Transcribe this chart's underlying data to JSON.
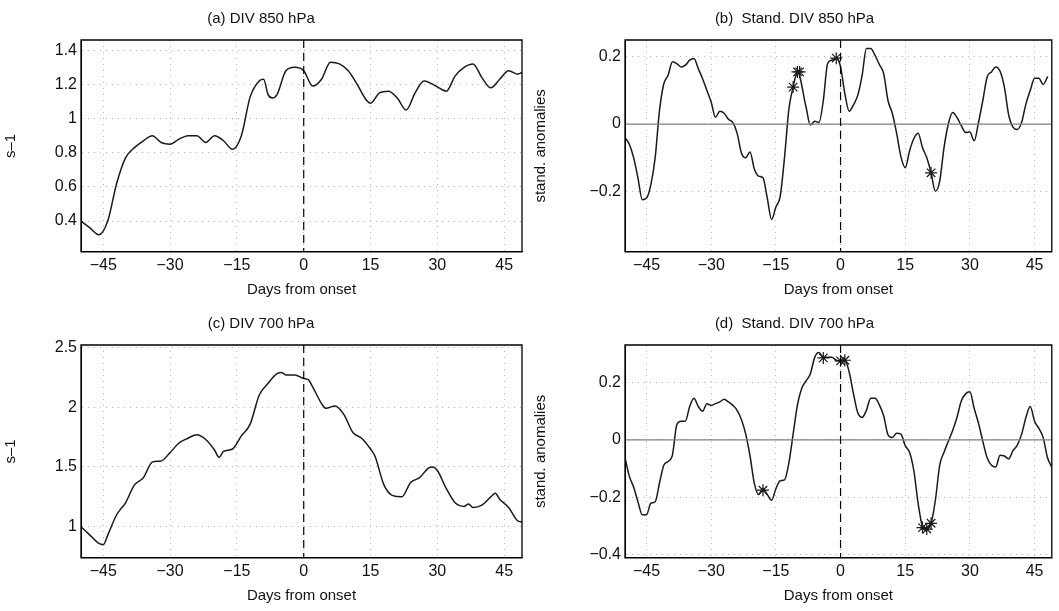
{
  "chart_data": [
    {
      "type": "line",
      "title": "(a) DIV 850 hPa",
      "xlabel": "Days from onset",
      "ylabel": "s–1",
      "xlim": [
        -50,
        49
      ],
      "ylim": [
        0.22,
        1.46
      ],
      "xticks": [
        -45,
        -30,
        -15,
        0,
        15,
        30,
        45
      ],
      "yticks": [
        0.4,
        0.6,
        0.8,
        1,
        1.2,
        1.4
      ],
      "grid": true,
      "legend": false,
      "marker": "none",
      "line_style": "solid",
      "ref_lines": [
        {
          "axis": "x",
          "value": 0,
          "color": "#000000",
          "line_style": "dashed"
        }
      ],
      "series": [
        {
          "color": "#1a1a1a",
          "x": [
            -50,
            -48,
            -46,
            -44,
            -42,
            -40,
            -38,
            -36,
            -34,
            -32,
            -30,
            -28,
            -26,
            -24,
            -22,
            -20,
            -18,
            -16,
            -14,
            -12,
            -10,
            -9,
            -8,
            -7,
            -6,
            -4,
            -2,
            0,
            2,
            4,
            6,
            8,
            10,
            12,
            14,
            15,
            17,
            19,
            21,
            23,
            25,
            27,
            29,
            31,
            32,
            34,
            36,
            38,
            40,
            42,
            44,
            46,
            48,
            49
          ],
          "values": [
            0.4,
            0.36,
            0.32,
            0.4,
            0.62,
            0.77,
            0.83,
            0.87,
            0.9,
            0.86,
            0.85,
            0.88,
            0.9,
            0.9,
            0.86,
            0.9,
            0.87,
            0.82,
            0.9,
            1.13,
            1.22,
            1.23,
            1.14,
            1.12,
            1.14,
            1.28,
            1.3,
            1.28,
            1.19,
            1.23,
            1.33,
            1.32,
            1.28,
            1.2,
            1.11,
            1.09,
            1.15,
            1.16,
            1.12,
            1.05,
            1.15,
            1.22,
            1.2,
            1.17,
            1.16,
            1.25,
            1.3,
            1.32,
            1.24,
            1.18,
            1.23,
            1.28,
            1.26,
            1.27
          ]
        }
      ]
    },
    {
      "type": "line",
      "title": "(b)  Stand. DIV 850 hPa",
      "xlabel": "Days from onset",
      "ylabel": "stand. anomalies",
      "xlim": [
        -50,
        49
      ],
      "ylim": [
        -0.38,
        0.25
      ],
      "xticks": [
        -45,
        -30,
        -15,
        0,
        15,
        30,
        45
      ],
      "yticks": [
        -0.2,
        0,
        0.2
      ],
      "grid": true,
      "legend": false,
      "marker": "none",
      "line_style": "solid",
      "ref_lines": [
        {
          "axis": "y",
          "value": 0,
          "color": "#808080",
          "line_style": "solid"
        },
        {
          "axis": "x",
          "value": 0,
          "color": "#000000",
          "line_style": "dashed"
        }
      ],
      "series": [
        {
          "color": "#1a1a1a",
          "x": [
            -50,
            -49,
            -48,
            -47,
            -46,
            -45,
            -44,
            -43,
            -42,
            -41,
            -40,
            -39,
            -38,
            -37,
            -36,
            -35,
            -34,
            -33,
            -32,
            -31,
            -30,
            -29,
            -28,
            -27,
            -26,
            -25,
            -24,
            -23,
            -22,
            -21,
            -20,
            -19,
            -18,
            -17,
            -16,
            -15,
            -14,
            -13,
            -12,
            -11,
            -10,
            -8,
            -7,
            -6,
            -5,
            -4,
            -3,
            -2,
            -1,
            0,
            1,
            2,
            3,
            4,
            5,
            6,
            7,
            8,
            9,
            10,
            11,
            12,
            13,
            14,
            15,
            16,
            17,
            18,
            19,
            20,
            21,
            22,
            23,
            24,
            25,
            26,
            27,
            28,
            29,
            30,
            31,
            32,
            33,
            34,
            35,
            36,
            37,
            38,
            39,
            40,
            41,
            42,
            43,
            44,
            45,
            46,
            47,
            48
          ],
          "values": [
            -0.04,
            -0.06,
            -0.1,
            -0.16,
            -0.225,
            -0.22,
            -0.18,
            -0.1,
            0.04,
            0.12,
            0.145,
            0.185,
            0.18,
            0.17,
            0.175,
            0.19,
            0.195,
            0.165,
            0.135,
            0.1,
            0.065,
            0.02,
            0.038,
            0.032,
            0.014,
            0.005,
            -0.027,
            -0.086,
            -0.1,
            -0.083,
            -0.134,
            -0.155,
            -0.16,
            -0.22,
            -0.284,
            -0.247,
            -0.215,
            -0.1,
            0.043,
            0.11,
            0.155,
            0.05,
            -0.003,
            0.008,
            0.005,
            0.07,
            0.18,
            0.19,
            0.196,
            0.17,
            0.09,
            0.038,
            0.057,
            0.086,
            0.145,
            0.225,
            0.225,
            0.204,
            0.177,
            0.15,
            0.07,
            0.032,
            -0.027,
            -0.097,
            -0.13,
            -0.08,
            -0.043,
            -0.027,
            -0.07,
            -0.1,
            -0.145,
            -0.2,
            -0.17,
            -0.07,
            0,
            0.034,
            0.02,
            -0.005,
            -0.025,
            -0.024,
            -0.05,
            0.005,
            0.07,
            0.14,
            0.155,
            0.17,
            0.157,
            0.11,
            0.027,
            -0.009,
            -0.016,
            0.005,
            0.06,
            0.1,
            0.136,
            0.136,
            0.118,
            0.14
          ]
        },
        {
          "type": "scatter",
          "color": "#1a1a1a",
          "marker": "cross",
          "x": [
            -11,
            -10,
            -9.5,
            -1,
            21
          ],
          "values": [
            0.11,
            0.155,
            0.155,
            0.196,
            -0.145
          ]
        }
      ]
    },
    {
      "type": "line",
      "title": "(c) DIV 700 hPa",
      "xlabel": "Days from onset",
      "ylabel": "s–1",
      "xlim": [
        -50,
        49
      ],
      "ylim": [
        0.74,
        2.52
      ],
      "xticks": [
        -45,
        -30,
        -15,
        0,
        15,
        30,
        45
      ],
      "yticks": [
        1,
        1.5,
        2,
        2.5
      ],
      "grid": true,
      "legend": false,
      "marker": "none",
      "line_style": "solid",
      "ref_lines": [
        {
          "axis": "x",
          "value": 0,
          "color": "#000000",
          "line_style": "dashed"
        }
      ],
      "series": [
        {
          "color": "#1a1a1a",
          "x": [
            -50,
            -48,
            -46,
            -45,
            -44,
            -42,
            -40,
            -38,
            -36,
            -34,
            -32,
            -30,
            -28,
            -26,
            -24,
            -22,
            -20,
            -19,
            -18,
            -16,
            -14,
            -12,
            -10,
            -8,
            -6,
            -5,
            -4,
            -2,
            0,
            1,
            2,
            4,
            5,
            7,
            9,
            11,
            13,
            15,
            16,
            18,
            20,
            22,
            24,
            26,
            28,
            29,
            30,
            32,
            34,
            36,
            37,
            38,
            40,
            42,
            43,
            44,
            46,
            48,
            49
          ],
          "values": [
            1,
            0.93,
            0.86,
            0.85,
            0.93,
            1.1,
            1.2,
            1.35,
            1.41,
            1.54,
            1.55,
            1.62,
            1.7,
            1.74,
            1.77,
            1.73,
            1.64,
            1.58,
            1.63,
            1.65,
            1.76,
            1.86,
            2.1,
            2.2,
            2.28,
            2.29,
            2.27,
            2.27,
            2.24,
            2.23,
            2.17,
            2.03,
            1.99,
            2.01,
            1.94,
            1.79,
            1.74,
            1.65,
            1.59,
            1.35,
            1.26,
            1.25,
            1.37,
            1.41,
            1.49,
            1.5,
            1.47,
            1.32,
            1.2,
            1.17,
            1.19,
            1.16,
            1.18,
            1.25,
            1.28,
            1.23,
            1.16,
            1.05,
            1.04
          ]
        }
      ]
    },
    {
      "type": "line",
      "title": "(d)  Stand. DIV 700 hPa",
      "xlabel": "Days from onset",
      "ylabel": "stand. anomalies",
      "xlim": [
        -50,
        49
      ],
      "ylim": [
        -0.41,
        0.33
      ],
      "xticks": [
        -45,
        -30,
        -15,
        0,
        15,
        30,
        45
      ],
      "yticks": [
        -0.4,
        -0.2,
        0,
        0.2
      ],
      "grid": true,
      "legend": false,
      "marker": "none",
      "line_style": "solid",
      "ref_lines": [
        {
          "axis": "y",
          "value": 0,
          "color": "#808080",
          "line_style": "solid"
        },
        {
          "axis": "x",
          "value": 0,
          "color": "#000000",
          "line_style": "dashed"
        }
      ],
      "series": [
        {
          "color": "#1a1a1a",
          "x": [
            -50,
            -49,
            -48,
            -47,
            -46,
            -45,
            -44,
            -43,
            -42,
            -41,
            -40,
            -39,
            -38,
            -37,
            -36,
            -35,
            -34,
            -33,
            -32,
            -31,
            -30,
            -29,
            -28,
            -27,
            -26,
            -25,
            -24,
            -23,
            -22,
            -21,
            -20,
            -19,
            -18,
            -17,
            -16,
            -15,
            -14,
            -13,
            -12,
            -11,
            -10,
            -9,
            -8,
            -7,
            -6,
            -5,
            -4,
            -3,
            -2,
            -1,
            0,
            1,
            2,
            3,
            4,
            5,
            6,
            7,
            8,
            9,
            10,
            11,
            12,
            13,
            14,
            15,
            16,
            17,
            18,
            19,
            20,
            21,
            22,
            23,
            24,
            25,
            26,
            27,
            28,
            29,
            30,
            31,
            32,
            33,
            34,
            35,
            36,
            37,
            38,
            39,
            40,
            41,
            42,
            43,
            44,
            45,
            46,
            47,
            48,
            49
          ],
          "values": [
            -0.062,
            -0.126,
            -0.164,
            -0.215,
            -0.26,
            -0.26,
            -0.22,
            -0.215,
            -0.15,
            -0.088,
            -0.075,
            -0.053,
            0.052,
            0.065,
            0.065,
            0.116,
            0.145,
            0.116,
            0.1,
            0.126,
            0.12,
            0.126,
            0.132,
            0.141,
            0.132,
            0.12,
            0.103,
            0.071,
            0.02,
            -0.056,
            -0.151,
            -0.19,
            -0.17,
            -0.19,
            -0.21,
            -0.17,
            -0.142,
            -0.139,
            -0.081,
            0.02,
            0.122,
            0.18,
            0.205,
            0.23,
            0.287,
            0.304,
            0.287,
            0.287,
            0.287,
            0.277,
            0.275,
            0.277,
            0.236,
            0.16,
            0.094,
            0.078,
            0.103,
            0.145,
            0.145,
            0.122,
            0.084,
            0.018,
            0.008,
            0.023,
            0.02,
            -0.02,
            -0.043,
            -0.107,
            -0.221,
            -0.3,
            -0.31,
            -0.29,
            -0.209,
            -0.088,
            -0.043,
            -0.005,
            0.033,
            0.078,
            0.135,
            0.16,
            0.167,
            0.109,
            0.058,
            -0.005,
            -0.062,
            -0.088,
            -0.094,
            -0.053,
            -0.056,
            -0.066,
            -0.037,
            -0.018,
            0.02,
            0.078,
            0.116,
            0.065,
            0.04,
            0.008,
            -0.062,
            -0.094
          ]
        },
        {
          "type": "scatter",
          "color": "#1a1a1a",
          "marker": "cross",
          "x": [
            -18,
            -4,
            0,
            1,
            19,
            20,
            21
          ],
          "values": [
            -0.175,
            0.285,
            0.275,
            0.277,
            -0.305,
            -0.31,
            -0.29
          ]
        }
      ]
    }
  ]
}
